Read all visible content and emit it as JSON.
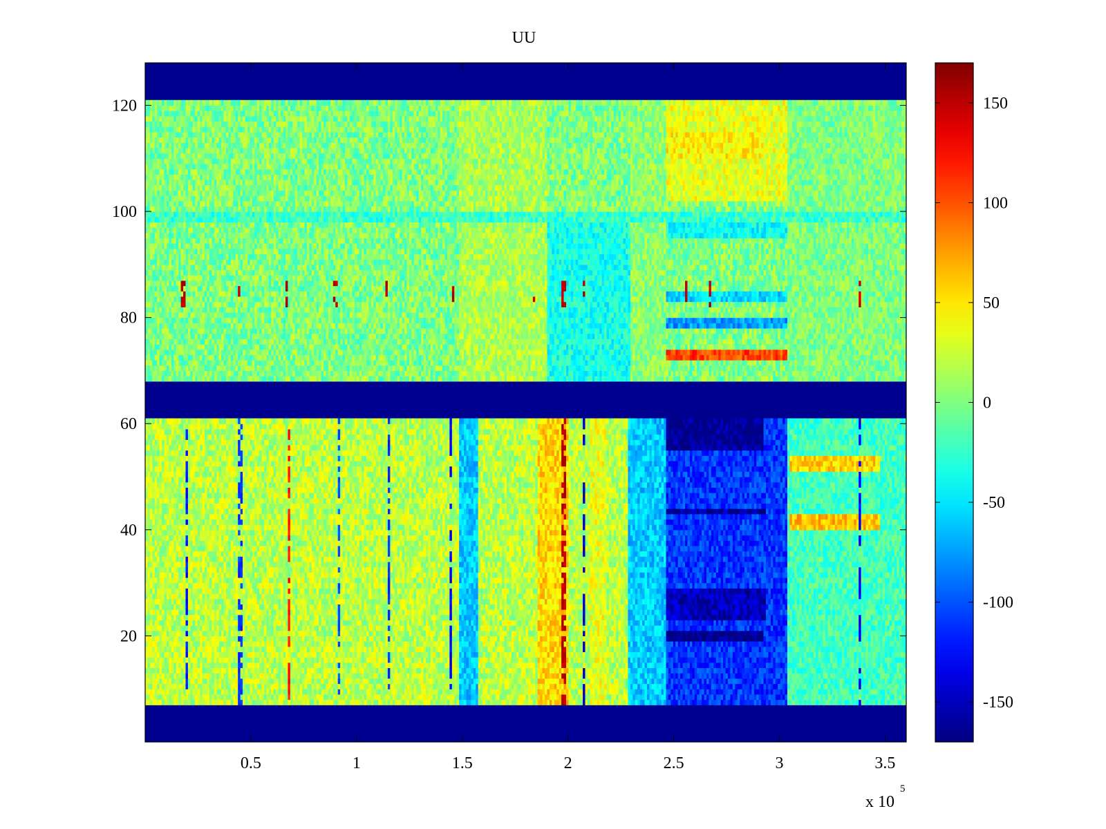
{
  "chart_data": {
    "type": "heatmap",
    "title": "UU",
    "xlabel": "",
    "ylabel": "",
    "x_multiplier_label": "x 10",
    "x_multiplier_exponent": "5",
    "xlim": [
      0,
      3.6
    ],
    "ylim": [
      0,
      128
    ],
    "x_ticks": [
      0.5,
      1,
      1.5,
      2,
      2.5,
      3,
      3.5
    ],
    "x_tick_labels": [
      "0.5",
      "1",
      "1.5",
      "2",
      "2.5",
      "3",
      "3.5"
    ],
    "y_ticks": [
      20,
      40,
      60,
      80,
      100,
      120
    ],
    "y_tick_labels": [
      "20",
      "40",
      "60",
      "80",
      "100",
      "120"
    ],
    "colorbar": {
      "colormap": "jet",
      "clim": [
        -170,
        170
      ],
      "ticks": [
        150,
        100,
        50,
        0,
        -50,
        -100,
        -150
      ],
      "tick_labels": [
        "150",
        "100",
        "50",
        "0",
        "-50",
        "-100",
        "-150"
      ]
    },
    "masked_value": -170,
    "masked_row_bands": [
      [
        0,
        7
      ],
      [
        61,
        68
      ],
      [
        121,
        128
      ]
    ],
    "background_level": {
      "rows_7_to_61": 20,
      "rows_68_to_121": 0
    },
    "regions": [
      {
        "rows": [
          7,
          61
        ],
        "x": [
          1.48,
          1.58
        ],
        "value": -60
      },
      {
        "rows": [
          7,
          61
        ],
        "x": [
          1.86,
          2.0
        ],
        "value": 55
      },
      {
        "rows": [
          7,
          61
        ],
        "x": [
          2.1,
          2.18
        ],
        "value": 35
      },
      {
        "rows": [
          7,
          61
        ],
        "x": [
          2.28,
          2.46
        ],
        "value": -60
      },
      {
        "rows": [
          7,
          61
        ],
        "x": [
          2.46,
          3.04
        ],
        "value": -110
      },
      {
        "rows": [
          55,
          61
        ],
        "x": [
          2.46,
          2.92
        ],
        "value": -165
      },
      {
        "rows": [
          19,
          21
        ],
        "x": [
          2.46,
          2.92
        ],
        "value": -170
      },
      {
        "rows": [
          23,
          29
        ],
        "x": [
          2.46,
          2.94
        ],
        "value": -150
      },
      {
        "rows": [
          43,
          44
        ],
        "x": [
          2.46,
          2.94
        ],
        "value": -160
      },
      {
        "rows": [
          7,
          61
        ],
        "x": [
          3.04,
          3.6
        ],
        "value": -20
      },
      {
        "rows": [
          40,
          43
        ],
        "x": [
          3.05,
          3.48
        ],
        "value": 65
      },
      {
        "rows": [
          51,
          54
        ],
        "x": [
          3.05,
          3.48
        ],
        "value": 55
      },
      {
        "rows": [
          68,
          121
        ],
        "x": [
          1.48,
          1.9
        ],
        "value": 15
      },
      {
        "rows": [
          68,
          100
        ],
        "x": [
          1.9,
          2.3
        ],
        "value": -35
      },
      {
        "rows": [
          68,
          121
        ],
        "x": [
          2.3,
          2.46
        ],
        "value": 5
      },
      {
        "rows": [
          102,
          121
        ],
        "x": [
          2.46,
          3.04
        ],
        "value": 35
      },
      {
        "rows": [
          110,
          115
        ],
        "x": [
          2.46,
          2.92
        ],
        "value": 45
      },
      {
        "rows": [
          72,
          74
        ],
        "x": [
          2.46,
          3.04
        ],
        "value": 105
      },
      {
        "rows": [
          78,
          80
        ],
        "x": [
          2.46,
          3.04
        ],
        "value": -75
      },
      {
        "rows": [
          83,
          85
        ],
        "x": [
          2.46,
          3.04
        ],
        "value": -55
      },
      {
        "rows": [
          95,
          100
        ],
        "x": [
          2.46,
          3.04
        ],
        "value": -40
      },
      {
        "rows": [
          68,
          121
        ],
        "x": [
          3.04,
          3.6
        ],
        "value": 0
      },
      {
        "rows": [
          98,
          100
        ],
        "x": [
          0.0,
          3.6
        ],
        "value": -25
      }
    ],
    "spike_lines": [
      {
        "x": 0.2,
        "rows": [
          7,
          61
        ],
        "value": -120
      },
      {
        "x": 0.45,
        "rows": [
          7,
          61
        ],
        "value": -110
      },
      {
        "x": 0.68,
        "rows": [
          7,
          61
        ],
        "value": 120
      },
      {
        "x": 0.92,
        "rows": [
          7,
          61
        ],
        "value": -100
      },
      {
        "x": 1.15,
        "rows": [
          7,
          61
        ],
        "value": -110
      },
      {
        "x": 1.45,
        "rows": [
          7,
          61
        ],
        "value": -130
      },
      {
        "x": 1.98,
        "rows": [
          7,
          61
        ],
        "value": 150
      },
      {
        "x": 2.08,
        "rows": [
          7,
          61
        ],
        "value": -140
      },
      {
        "x": 3.38,
        "rows": [
          7,
          61
        ],
        "value": -130
      },
      {
        "x": 0.18,
        "rows": [
          82,
          87
        ],
        "value": 150
      },
      {
        "x": 0.44,
        "rows": [
          82,
          87
        ],
        "value": 150
      },
      {
        "x": 0.67,
        "rows": [
          82,
          87
        ],
        "value": 150
      },
      {
        "x": 0.9,
        "rows": [
          82,
          87
        ],
        "value": 150
      },
      {
        "x": 1.14,
        "rows": [
          82,
          87
        ],
        "value": 150
      },
      {
        "x": 1.46,
        "rows": [
          82,
          87
        ],
        "value": 150
      },
      {
        "x": 1.84,
        "rows": [
          82,
          87
        ],
        "value": 150
      },
      {
        "x": 1.98,
        "rows": [
          82,
          87
        ],
        "value": 150
      },
      {
        "x": 2.08,
        "rows": [
          82,
          87
        ],
        "value": 150
      },
      {
        "x": 2.56,
        "rows": [
          82,
          87
        ],
        "value": 150
      },
      {
        "x": 2.67,
        "rows": [
          82,
          87
        ],
        "value": 150
      },
      {
        "x": 3.38,
        "rows": [
          82,
          87
        ],
        "value": 150
      }
    ]
  }
}
